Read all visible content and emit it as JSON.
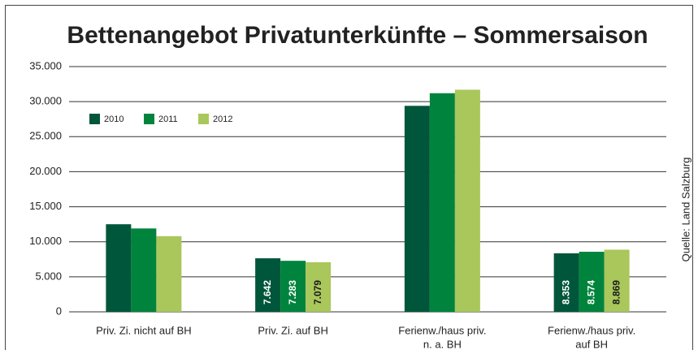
{
  "chart_data": {
    "type": "bar",
    "title": "Bettenangebot Privatunterkünfte – Sommersaison",
    "source": "Quelle: Land Salzburg",
    "categories": [
      "Priv. Zi. nicht auf BH",
      "Priv. Zi. auf BH",
      [
        "Ferienw./haus priv.",
        "n. a. BH"
      ],
      [
        "Ferienw./haus priv.",
        "auf BH"
      ]
    ],
    "series": [
      {
        "name": "2010",
        "color": "#00563a",
        "values": [
          12500,
          7642,
          29400,
          8353
        ],
        "value_labels": [
          null,
          "7.642",
          null,
          "8.353"
        ]
      },
      {
        "name": "2011",
        "color": "#00843d",
        "values": [
          11900,
          7283,
          31200,
          8574
        ],
        "value_labels": [
          null,
          "7.283",
          null,
          "8.574"
        ]
      },
      {
        "name": "2012",
        "color": "#a9c75b",
        "values": [
          10800,
          7079,
          31700,
          8869
        ],
        "value_labels": [
          null,
          "7.079",
          null,
          "8.869"
        ]
      }
    ],
    "ylim": [
      0,
      35000
    ],
    "yticks": [
      0,
      {
        "value": 5000,
        "label": "5.000"
      },
      {
        "value": 10000,
        "label": "10.000"
      },
      {
        "value": 15000,
        "label": "15.000"
      },
      {
        "value": 20000,
        "label": "20.000"
      },
      {
        "value": 25000,
        "label": "25.000"
      },
      {
        "value": 30000,
        "label": "30.000"
      },
      {
        "value": 35000,
        "label": "35.000"
      }
    ],
    "grid": true,
    "legend": "top-left"
  }
}
